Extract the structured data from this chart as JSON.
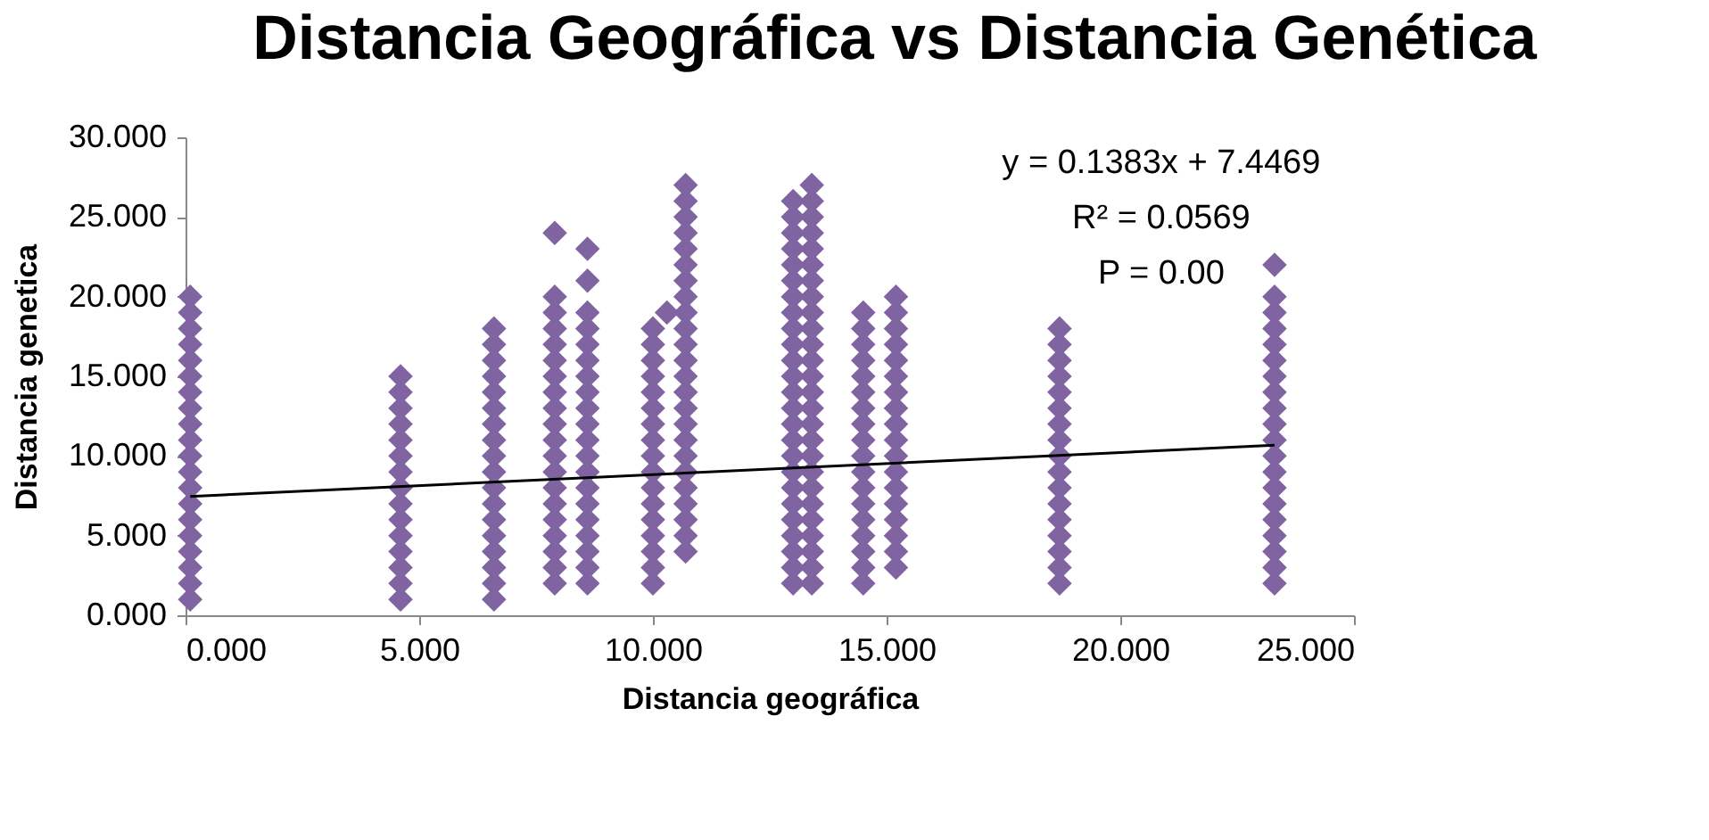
{
  "chart_data": {
    "type": "scatter",
    "title": "Distancia Geográfica vs Distancia Genética",
    "xlabel": "Distancia geográfica",
    "ylabel": "Distancia genetica",
    "xlim": [
      0,
      25
    ],
    "xticks": [
      {
        "value": 0,
        "label": "0.000"
      },
      {
        "value": 5,
        "label": "5.000"
      },
      {
        "value": 10,
        "label": "10.000"
      },
      {
        "value": 15,
        "label": "15.000"
      },
      {
        "value": 20,
        "label": "20.000"
      },
      {
        "value": 25,
        "label": "25.000"
      }
    ],
    "ylim": [
      0,
      30
    ],
    "yticks": [
      {
        "value": 0,
        "label": "0.000"
      },
      {
        "value": 5,
        "label": "5.000"
      },
      {
        "value": 10,
        "label": "10.000"
      },
      {
        "value": 15,
        "label": "15.000"
      },
      {
        "value": 20,
        "label": "20.000"
      },
      {
        "value": 25,
        "label": "25.000"
      },
      {
        "value": 30,
        "label": "30.000"
      }
    ],
    "grid": false,
    "marker": "diamond",
    "annotations": [
      "y = 0.1383x + 7.4469",
      "R² = 0.0569",
      "P = 0.00"
    ],
    "series": [
      {
        "color": "#8064a2",
        "x": [
          0.1,
          0.1,
          0.1,
          0.1,
          0.1,
          0.1,
          0.1,
          0.1,
          0.1,
          0.1,
          0.1,
          0.1,
          0.1,
          0.1,
          0.1,
          0.1,
          0.1,
          0.1,
          0.1,
          0.1,
          4.6,
          4.6,
          4.6,
          4.6,
          4.6,
          4.6,
          4.6,
          4.6,
          4.6,
          4.6,
          4.6,
          4.6,
          4.6,
          4.6,
          4.6,
          6.6,
          6.6,
          6.6,
          6.6,
          6.6,
          6.6,
          6.6,
          6.6,
          6.6,
          6.6,
          6.6,
          6.6,
          6.6,
          6.6,
          6.6,
          6.6,
          6.6,
          6.6,
          7.9,
          7.9,
          7.9,
          7.9,
          7.9,
          7.9,
          7.9,
          7.9,
          7.9,
          7.9,
          7.9,
          7.9,
          7.9,
          7.9,
          7.9,
          7.9,
          7.9,
          7.9,
          7.9,
          7.9,
          8.6,
          8.6,
          8.6,
          8.6,
          8.6,
          8.6,
          8.6,
          8.6,
          8.6,
          8.6,
          8.6,
          8.6,
          8.6,
          8.6,
          8.6,
          8.6,
          8.6,
          8.6,
          8.6,
          8.6,
          10.0,
          10.0,
          10.0,
          10.0,
          10.0,
          10.0,
          10.0,
          10.0,
          10.0,
          10.0,
          10.0,
          10.0,
          10.0,
          10.0,
          10.0,
          10.0,
          10.0,
          10.3,
          10.7,
          10.7,
          10.7,
          10.7,
          10.7,
          10.7,
          10.7,
          10.7,
          10.7,
          10.7,
          10.7,
          10.7,
          10.7,
          10.7,
          10.7,
          10.7,
          10.7,
          10.7,
          10.7,
          10.7,
          10.7,
          10.7,
          10.7,
          10.7,
          13.0,
          13.0,
          13.0,
          13.0,
          13.0,
          13.0,
          13.0,
          13.0,
          13.0,
          13.0,
          13.0,
          13.0,
          13.0,
          13.0,
          13.0,
          13.0,
          13.0,
          13.0,
          13.0,
          13.0,
          13.0,
          13.0,
          13.0,
          13.0,
          13.0,
          13.4,
          13.4,
          13.4,
          13.4,
          13.4,
          13.4,
          13.4,
          13.4,
          13.4,
          13.4,
          13.4,
          13.4,
          13.4,
          13.4,
          13.4,
          13.4,
          13.4,
          13.4,
          13.4,
          13.4,
          13.4,
          13.4,
          13.4,
          13.4,
          13.4,
          13.4,
          14.5,
          14.5,
          14.5,
          14.5,
          14.5,
          14.5,
          14.5,
          14.5,
          14.5,
          14.5,
          14.5,
          14.5,
          14.5,
          14.5,
          14.5,
          14.5,
          14.5,
          14.5,
          15.2,
          15.2,
          15.2,
          15.2,
          15.2,
          15.2,
          15.2,
          15.2,
          15.2,
          15.2,
          15.2,
          15.2,
          15.2,
          15.2,
          15.2,
          15.2,
          15.2,
          15.2,
          18.7,
          18.7,
          18.7,
          18.7,
          18.7,
          18.7,
          18.7,
          18.7,
          18.7,
          18.7,
          18.7,
          18.7,
          18.7,
          18.7,
          18.7,
          18.7,
          18.7,
          23.3,
          23.3,
          23.3,
          23.3,
          23.3,
          23.3,
          23.3,
          23.3,
          23.3,
          23.3,
          23.3,
          23.3,
          23.3,
          23.3,
          23.3,
          23.3,
          23.3,
          23.3,
          23.3,
          23.3
        ],
        "values": [
          1,
          2,
          3,
          4,
          5,
          6,
          7,
          8,
          9,
          10,
          11,
          12,
          13,
          14,
          15,
          16,
          17,
          18,
          19,
          20,
          1,
          2,
          3,
          4,
          5,
          6,
          7,
          8,
          9,
          10,
          11,
          12,
          13,
          14,
          15,
          1,
          2,
          3,
          4,
          5,
          6,
          7,
          8,
          9,
          10,
          11,
          12,
          13,
          14,
          15,
          16,
          17,
          18,
          2,
          3,
          4,
          5,
          6,
          7,
          8,
          9,
          10,
          11,
          12,
          13,
          14,
          15,
          16,
          17,
          18,
          19,
          20,
          24,
          2,
          3,
          4,
          5,
          6,
          7,
          8,
          9,
          10,
          11,
          12,
          13,
          14,
          15,
          16,
          17,
          18,
          19,
          21,
          23,
          2,
          3,
          4,
          5,
          6,
          7,
          8,
          9,
          10,
          11,
          12,
          13,
          14,
          15,
          16,
          17,
          18,
          19,
          4,
          5,
          6,
          7,
          8,
          9,
          10,
          11,
          12,
          13,
          14,
          15,
          16,
          17,
          18,
          19,
          20,
          21,
          22,
          23,
          24,
          25,
          26,
          27,
          2,
          3,
          4,
          5,
          6,
          7,
          8,
          9,
          10,
          11,
          12,
          13,
          14,
          15,
          16,
          17,
          18,
          19,
          20,
          21,
          22,
          23,
          24,
          25,
          26,
          2,
          3,
          4,
          5,
          6,
          7,
          8,
          9,
          10,
          11,
          12,
          13,
          14,
          15,
          16,
          17,
          18,
          19,
          20,
          21,
          22,
          23,
          24,
          25,
          26,
          27,
          2,
          3,
          4,
          5,
          6,
          7,
          8,
          9,
          10,
          11,
          12,
          13,
          14,
          15,
          16,
          17,
          18,
          19,
          3,
          4,
          5,
          6,
          7,
          8,
          9,
          10,
          11,
          12,
          13,
          14,
          15,
          16,
          17,
          18,
          19,
          20,
          2,
          3,
          4,
          5,
          6,
          7,
          8,
          9,
          10,
          11,
          12,
          13,
          14,
          15,
          16,
          17,
          18,
          2,
          3,
          4,
          5,
          6,
          7,
          8,
          9,
          10,
          11,
          12,
          13,
          14,
          15,
          16,
          17,
          18,
          19,
          20,
          22
        ]
      },
      {
        "type": "line",
        "marker": "none",
        "color": "#000000",
        "x": [
          0.1,
          23.3
        ],
        "values": [
          7.46,
          10.67
        ]
      }
    ]
  }
}
